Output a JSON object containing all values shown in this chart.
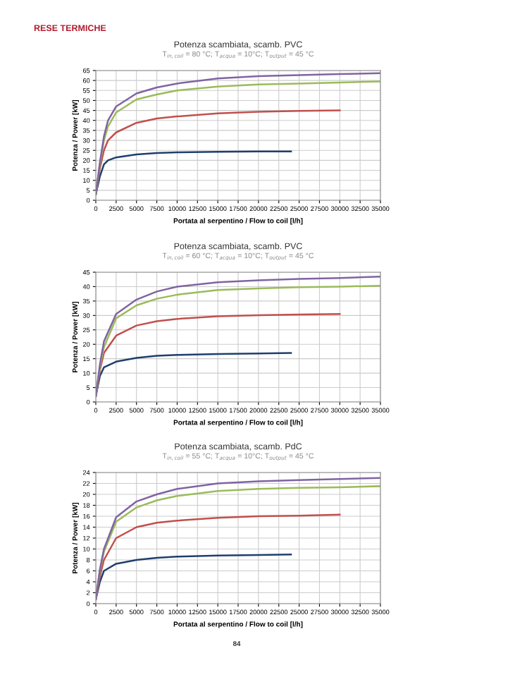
{
  "chart_data": [
    {
      "type": "line",
      "title": "Potenza scambiata, scamb. PVC",
      "subtitle": "T$_{in,coil}$ = 80 °C; T$_{acqua}$ = 10°C; T$_{output}$ = 45 °C",
      "xlabel": "Portata al serpentino / Flow to coil [l/h]",
      "ylabel": "Potenza / Power [kW]",
      "annotations": [
        "RESE TERMICHE"
      ],
      "grid": true,
      "line_style": "solid",
      "xlim": [
        0,
        35000
      ],
      "xticks": [
        0,
        2500,
        5000,
        7500,
        10000,
        12500,
        15000,
        17500,
        20000,
        22500,
        25000,
        27500,
        30000,
        32500,
        35000
      ],
      "ylim": [
        0,
        65
      ],
      "yticks": [
        0,
        5,
        10,
        15,
        20,
        25,
        30,
        35,
        40,
        45,
        50,
        55,
        60,
        65
      ],
      "series": [
        {
          "color": "#1f3f6e",
          "x": [
            0,
            500,
            1000,
            1500,
            2500,
            5000,
            7500,
            10000,
            15000,
            20000,
            24000
          ],
          "values": [
            3,
            12,
            18,
            20,
            21.5,
            23,
            23.7,
            24,
            24.3,
            24.5,
            24.5
          ]
        },
        {
          "color": "#c0504d",
          "x": [
            0,
            500,
            1000,
            1500,
            2500,
            5000,
            7500,
            10000,
            15000,
            20000,
            25000,
            30000
          ],
          "values": [
            3,
            16,
            25,
            30,
            34,
            38.8,
            41,
            42,
            43.5,
            44.3,
            44.8,
            45
          ]
        },
        {
          "color": "#9bbb59",
          "x": [
            0,
            500,
            1000,
            1500,
            2500,
            5000,
            7500,
            10000,
            15000,
            20000,
            25000,
            30000,
            35000
          ],
          "values": [
            3,
            18,
            30,
            37,
            44,
            50.5,
            53,
            55,
            57,
            58,
            58.5,
            59,
            59.5
          ]
        },
        {
          "color": "#8064a2",
          "x": [
            0,
            500,
            1000,
            1500,
            2500,
            5000,
            7500,
            10000,
            15000,
            20000,
            25000,
            30000,
            35000
          ],
          "values": [
            3,
            19,
            32,
            40,
            47,
            53.5,
            56.5,
            58.5,
            61,
            62.2,
            62.7,
            63.2,
            63.7
          ]
        }
      ]
    },
    {
      "type": "line",
      "title": "Potenza scambiata, scamb. PVC",
      "subtitle": "T$_{in,coil}$ = 60 °C; T$_{acqua}$ = 10°C; T$_{output}$ = 45 °C",
      "xlabel": "Portata al serpentino / Flow to coil [l/h]",
      "ylabel": "Potenza / Power [kW]",
      "grid": true,
      "line_style": "solid",
      "xlim": [
        0,
        35000
      ],
      "xticks": [
        0,
        2500,
        5000,
        7500,
        10000,
        12500,
        15000,
        17500,
        20000,
        22500,
        25000,
        27500,
        30000,
        32500,
        35000
      ],
      "ylim": [
        0,
        45
      ],
      "yticks": [
        0,
        5,
        10,
        15,
        20,
        25,
        30,
        35,
        40,
        45
      ],
      "series": [
        {
          "color": "#1f3f6e",
          "x": [
            0,
            500,
            1000,
            2500,
            5000,
            7500,
            10000,
            15000,
            20000,
            24000
          ],
          "values": [
            2,
            9,
            12,
            14,
            15.3,
            16,
            16.3,
            16.6,
            16.8,
            17
          ]
        },
        {
          "color": "#c0504d",
          "x": [
            0,
            500,
            1000,
            2500,
            5000,
            7500,
            10000,
            15000,
            20000,
            25000,
            30000
          ],
          "values": [
            2,
            11,
            17,
            23,
            26.5,
            28,
            28.8,
            29.7,
            30.1,
            30.3,
            30.5
          ]
        },
        {
          "color": "#9bbb59",
          "x": [
            0,
            500,
            1000,
            2500,
            5000,
            7500,
            10000,
            15000,
            20000,
            25000,
            30000,
            35000
          ],
          "values": [
            2,
            12,
            19,
            29,
            33.5,
            35.8,
            37.2,
            38.8,
            39.4,
            39.8,
            40,
            40.3
          ]
        },
        {
          "color": "#8064a2",
          "x": [
            0,
            500,
            1000,
            2500,
            5000,
            7500,
            10000,
            15000,
            20000,
            25000,
            30000,
            35000
          ],
          "values": [
            2,
            13,
            21,
            30.5,
            35.5,
            38.3,
            40,
            41.5,
            42.2,
            42.7,
            43,
            43.5
          ]
        }
      ]
    },
    {
      "type": "line",
      "title": "Potenza scambiata, scamb. PdC",
      "subtitle": "T$_{in,coil}$ = 55 °C; T$_{acqua}$ = 10°C; T$_{output}$ = 45 °C",
      "xlabel": "Portata al serpentino / Flow to coil [l/h]",
      "ylabel": "Potenza / Power [kW]",
      "annotations": [
        "84"
      ],
      "grid": true,
      "line_style": "solid",
      "xlim": [
        0,
        35000
      ],
      "xticks": [
        0,
        2500,
        5000,
        7500,
        10000,
        12500,
        15000,
        17500,
        20000,
        22500,
        25000,
        27500,
        30000,
        32500,
        35000
      ],
      "ylim": [
        0,
        24
      ],
      "yticks": [
        0,
        2,
        4,
        6,
        8,
        10,
        12,
        14,
        16,
        18,
        20,
        22,
        24
      ],
      "series": [
        {
          "color": "#1f3f6e",
          "x": [
            0,
            500,
            1000,
            2500,
            5000,
            7500,
            10000,
            15000,
            20000,
            24000
          ],
          "values": [
            0.8,
            4,
            6,
            7.3,
            8,
            8.4,
            8.6,
            8.8,
            8.9,
            9
          ]
        },
        {
          "color": "#c0504d",
          "x": [
            0,
            500,
            1000,
            2500,
            5000,
            7500,
            10000,
            15000,
            20000,
            25000,
            30000
          ],
          "values": [
            0.8,
            5,
            8,
            12,
            14,
            14.8,
            15.2,
            15.7,
            16,
            16.1,
            16.3
          ]
        },
        {
          "color": "#9bbb59",
          "x": [
            0,
            500,
            1000,
            2500,
            5000,
            7500,
            10000,
            15000,
            20000,
            25000,
            30000,
            35000
          ],
          "values": [
            0.8,
            6,
            9.5,
            15,
            17.6,
            18.9,
            19.7,
            20.6,
            21,
            21.2,
            21.3,
            21.5
          ]
        },
        {
          "color": "#8064a2",
          "x": [
            0,
            500,
            1000,
            2500,
            5000,
            7500,
            10000,
            15000,
            20000,
            25000,
            30000,
            35000
          ],
          "values": [
            0.8,
            6.3,
            10,
            15.8,
            18.7,
            20,
            21,
            22,
            22.4,
            22.6,
            22.8,
            23
          ]
        }
      ]
    }
  ]
}
